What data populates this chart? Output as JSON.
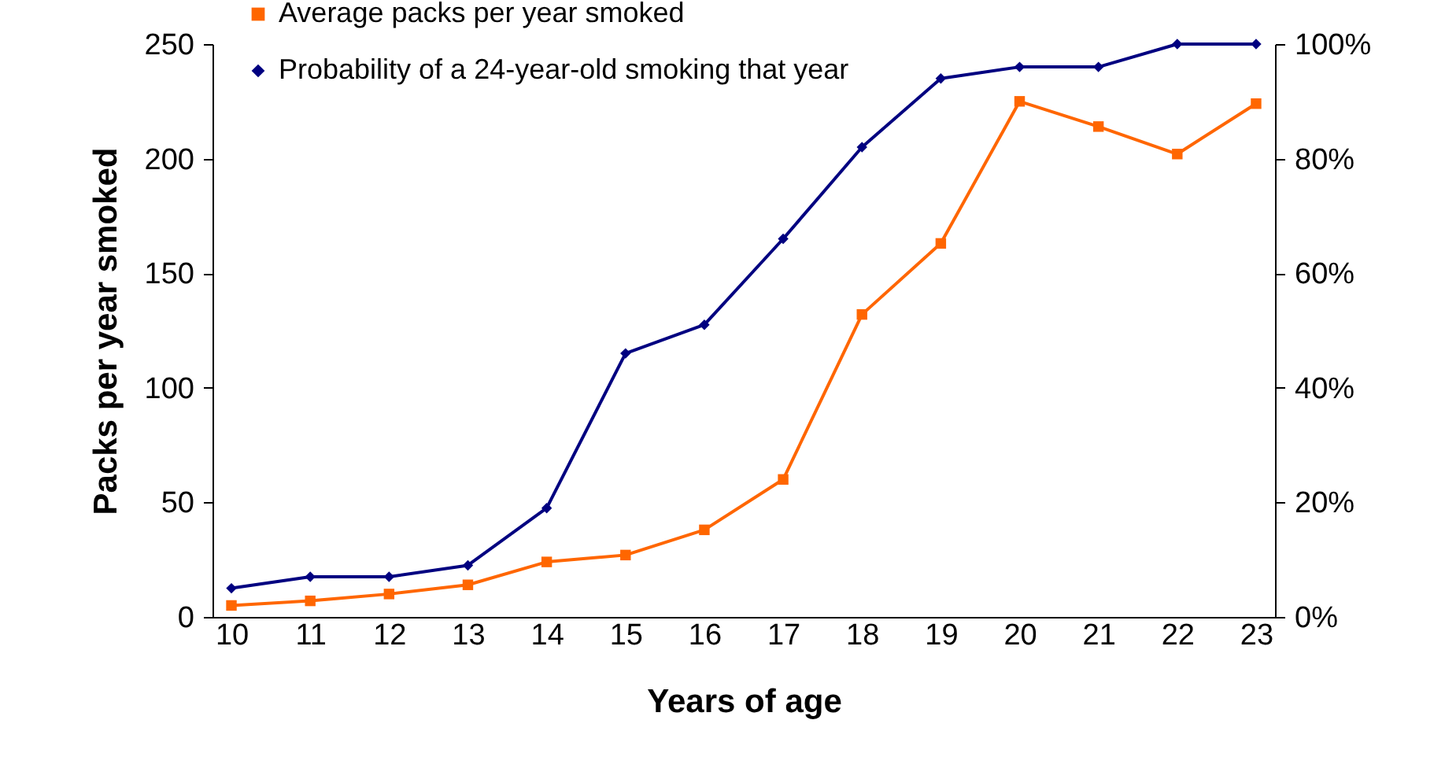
{
  "chart_data": {
    "type": "line",
    "xlabel": "Years of age",
    "ylabel": "Packs per year smoked",
    "categories": [
      "10",
      "11",
      "12",
      "13",
      "14",
      "15",
      "16",
      "17",
      "18",
      "19",
      "20",
      "21",
      "22",
      "23"
    ],
    "series": [
      {
        "name": "Average packs per year smoked",
        "color": "#ff6600",
        "marker": "square",
        "values": [
          5,
          7,
          10,
          14,
          24,
          27,
          38,
          60,
          132,
          163,
          225,
          214,
          202,
          224
        ]
      },
      {
        "name": "Probability of a 24-year-old smoking that year",
        "color": "#000080",
        "marker": "diamond",
        "axis": "y2",
        "values": [
          5,
          7,
          7,
          9,
          19,
          46,
          51,
          66,
          82,
          94,
          96,
          96,
          100,
          100
        ]
      }
    ],
    "ylim": [
      0,
      250
    ],
    "yticks": [
      0,
      50,
      100,
      150,
      200,
      250
    ],
    "y2lim": [
      0,
      100
    ],
    "y2ticks": [
      {
        "value": 0,
        "label": "0%"
      },
      {
        "value": 20,
        "label": "20%"
      },
      {
        "value": 40,
        "label": "40%"
      },
      {
        "value": 60,
        "label": "60%"
      },
      {
        "value": 80,
        "label": "80%"
      },
      {
        "value": 100,
        "label": "100%"
      }
    ],
    "legend": "top left",
    "grid": false
  }
}
